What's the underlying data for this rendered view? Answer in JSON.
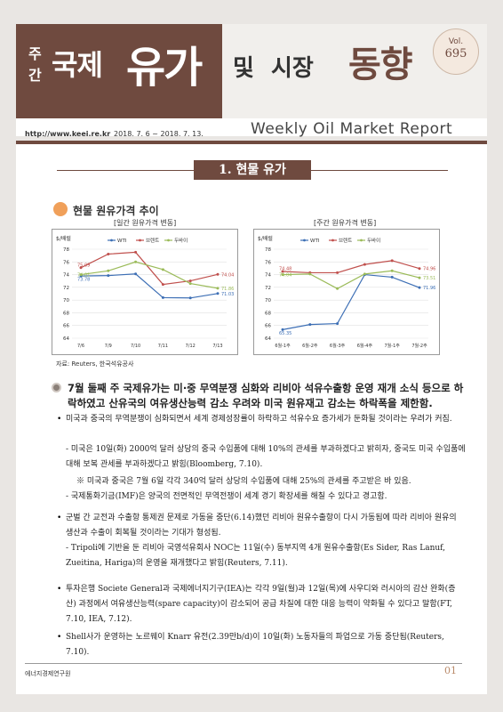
{
  "header": {
    "title_ju": "주",
    "title_gan": "간",
    "title_gukje": "국제",
    "title_yuga": "유가",
    "title_mit": "및",
    "title_sijang": "시장",
    "title_donghyang": "동향",
    "vol_label": "Vol.",
    "vol_number": "695",
    "url": "http://www.keei.re.kr",
    "date_range": "2018. 7. 6 ~ 2018. 7. 13.",
    "english_title": "Weekly Oil Market Report"
  },
  "section": {
    "title": "1. 현물 유가",
    "subheading": "현물 원유가격 추이"
  },
  "charts": {
    "daily_label": "[일간 원유가격 변동]",
    "weekly_label": "[주간 원유가격 변동]",
    "unit": "$/배럴",
    "legend": [
      "WTI",
      "브렌트",
      "두바이"
    ],
    "colors": {
      "wti": "#3d6fb5",
      "brent": "#c0504d",
      "dubai": "#9bbb59"
    }
  },
  "chart_data": [
    {
      "type": "line",
      "title": "[일간 원유가격 변동]",
      "ylabel": "$/배럴",
      "ylim": [
        64,
        78
      ],
      "yticks": [
        "64",
        "66",
        "68",
        "70",
        "72",
        "74",
        "76",
        "78"
      ],
      "categories": [
        "7/6",
        "7/9",
        "7/10",
        "7/11",
        "7/12",
        "7/13"
      ],
      "series": [
        {
          "name": "WTI",
          "values": [
            73.78,
            73.85,
            74.11,
            70.38,
            70.33,
            71.03
          ]
        },
        {
          "name": "브렌트",
          "values": [
            75.09,
            77.23,
            77.52,
            72.46,
            73.02,
            74.04
          ]
        },
        {
          "name": "두바이",
          "values": [
            74.0,
            74.6,
            76.0,
            74.8,
            72.6,
            71.86
          ]
        }
      ],
      "data_labels": {
        "start": [
          "75.09",
          "74.01",
          "73.78"
        ],
        "end": [
          "74.04",
          "71.86",
          "71.03"
        ]
      }
    },
    {
      "type": "line",
      "title": "[주간 원유가격 변동]",
      "ylabel": "$/배럴",
      "ylim": [
        64,
        78
      ],
      "yticks": [
        "64",
        "66",
        "68",
        "70",
        "72",
        "74",
        "76",
        "78"
      ],
      "categories": [
        "6월-1주",
        "6월-2주",
        "6월-3주",
        "6월-4주",
        "7월-1주",
        "7월-2주"
      ],
      "series": [
        {
          "name": "WTI",
          "values": [
            65.35,
            66.15,
            66.3,
            74.0,
            73.6,
            71.96
          ]
        },
        {
          "name": "브렌트",
          "values": [
            74.5,
            74.3,
            74.3,
            75.6,
            76.2,
            74.96
          ]
        },
        {
          "name": "두바이",
          "values": [
            74.0,
            74.1,
            71.8,
            74.1,
            74.6,
            73.51
          ]
        }
      ],
      "data_labels": {
        "start": [
          "74.48",
          "74.04",
          "65.35"
        ],
        "end": [
          "74.96",
          "73.51",
          "71.96"
        ]
      }
    }
  ],
  "source": "자료: Reuters, 한국석유공사",
  "main_bullet": "7월 둘째 주 국제유가는 미·중 무역분쟁 심화와 리비아 석유수출항 운영 재개 소식 등으로 하락하였고 산유국의 여유생산능력 감소 우려와 미국 원유재고 감소는 하락폭을 제한함.",
  "paragraphs": {
    "p1": "미국과 중국의 무역분쟁이 심화되면서 세계 경제성장률이 하락하고 석유수요 증가세가 둔화될 것이라는 우려가 커짐.",
    "p1a": "- 미국은 10일(화) 2000억 달러 상당의 중국 수입품에 대해 10%의 관세를 부과하겠다고 밝히자, 중국도 미국 수입품에 대해 보복 관세를 부과하겠다고 밝힘(Bloomberg, 7.10).",
    "p1b": "※ 미국과 중국은 7월 6일 각각 340억 달러 상당의 수입품에 대해 25%의 관세를 주고받은 바 있음.",
    "p1c": "- 국제통화기금(IMF)은 양국의 전면적인 무역전쟁이 세계 경기 확장세를 해칠 수 있다고 경고함.",
    "p2": "군벌 간 교전과 수출항 통제권 문제로 가동을 중단(6.14)했던 리비아 원유수출항이 다시 가동됨에 따라 리비아 원유의 생산과 수출이 회복될 것이라는 기대가 형성됨.",
    "p2a": "- Tripoli에 기반을 둔 리비아 국영석유회사 NOC는 11일(수) 동부지역 4개 원유수출항(Es Sider, Ras Lanuf, Zueitina, Hariga)의 운영을 재개했다고 밝힘(Reuters, 7.11).",
    "p3": "투자은행 Societe General과 국제에너지기구(IEA)는 각각 9일(월)과 12일(목)에 사우디와 러시아의 감산 완화(증산) 과정에서 여유생산능력(spare capacity)이 감소되어 공급 차질에 대한 대응 능력이 약화될 수 있다고 말함(FT, 7.10, IEA, 7.12).",
    "p4": "Shell사가 운영하는 노르웨이 Knarr 유전(2.39만b/d)이 10일(화) 노동자들의 파업으로 가동 중단됨(Reuters, 7.10)."
  },
  "footer": {
    "org": "에너지경제연구원",
    "page_num": "01"
  }
}
